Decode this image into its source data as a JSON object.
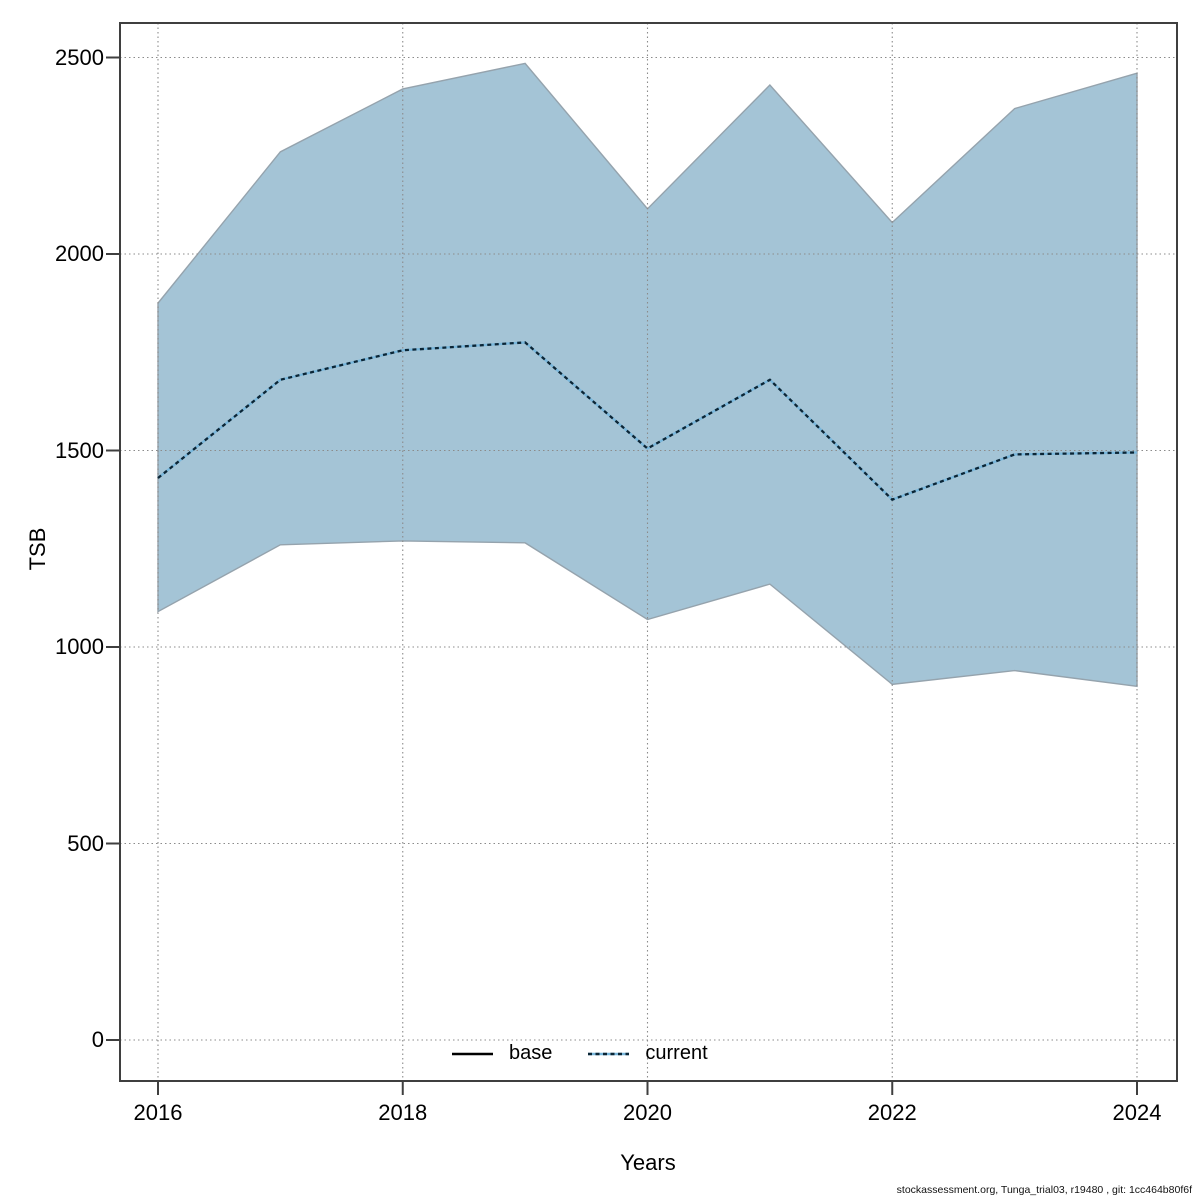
{
  "chart_data": {
    "type": "area",
    "title": "",
    "xlabel": "Years",
    "ylabel": "TSB",
    "x": [
      2016,
      2017,
      2018,
      2019,
      2020,
      2021,
      2022,
      2023,
      2024
    ],
    "series": [
      {
        "name": "base",
        "role": "confidence-band",
        "upper": [
          1875,
          2260,
          2420,
          2485,
          2115,
          2430,
          2080,
          2370,
          2460
        ],
        "lower": [
          1090,
          1260,
          1270,
          1265,
          1070,
          1160,
          905,
          940,
          900
        ]
      },
      {
        "name": "current",
        "role": "center-line",
        "style": "dotted",
        "values": [
          1430,
          1680,
          1755,
          1775,
          1505,
          1680,
          1375,
          1490,
          1495
        ]
      }
    ],
    "x_ticks": [
      2016,
      2018,
      2020,
      2022,
      2024
    ],
    "y_ticks": [
      0,
      500,
      1000,
      1500,
      2000,
      2500
    ],
    "ylim": [
      0,
      2500
    ],
    "grid": true,
    "legend_position": "bottom-center",
    "legend": [
      {
        "label": "base",
        "style": "solid"
      },
      {
        "label": "current",
        "style": "dotted"
      }
    ],
    "colors": {
      "band_fill": "#a4c4d6",
      "band_edge": "#95a3ad",
      "grid": "#8b8b8b",
      "axis": "#3f3f3f",
      "line_under": "#79b7dc",
      "line_dash": "#0b2535",
      "base_line": "#000000"
    }
  },
  "footer": {
    "text": "stockassessment.org, Tunga_trial03, r19480 , git: 1cc464b80f6f"
  }
}
